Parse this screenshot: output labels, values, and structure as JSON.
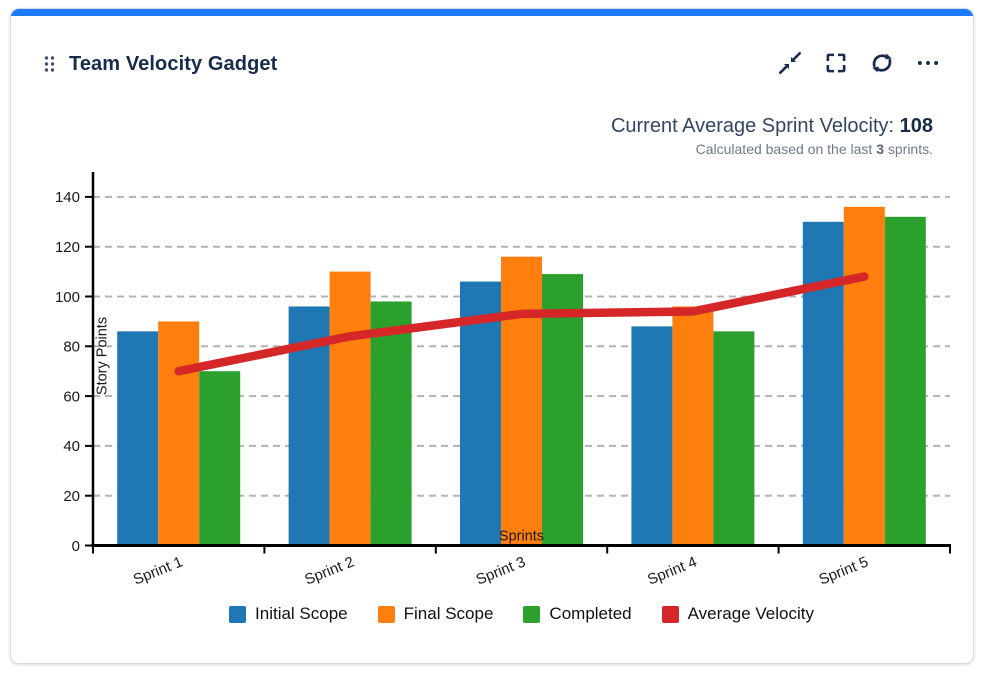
{
  "card": {
    "title": "Team Velocity Gadget",
    "accent_color": "#1d7afc",
    "icon_color": "#172b4d"
  },
  "toolbar": {
    "icons": [
      "collapse",
      "fullscreen",
      "refresh",
      "more"
    ]
  },
  "summary": {
    "label": "Current Average Sprint Velocity: ",
    "value": "108",
    "subtext_prefix": "Calculated based on the last ",
    "subtext_bold": "3",
    "subtext_suffix": " sprints."
  },
  "chart_data": {
    "type": "bar",
    "title": "",
    "categories": [
      "Sprint 1",
      "Sprint 2",
      "Sprint 3",
      "Sprint 4",
      "Sprint 5"
    ],
    "series": [
      {
        "name": "Initial Scope",
        "type": "bar",
        "color": "#1f77b4",
        "values": [
          86,
          96,
          106,
          88,
          130
        ]
      },
      {
        "name": "Final Scope",
        "type": "bar",
        "color": "#ff7f0e",
        "values": [
          90,
          110,
          116,
          96,
          136
        ]
      },
      {
        "name": "Completed",
        "type": "bar",
        "color": "#2ca02c",
        "values": [
          70,
          98,
          109,
          86,
          132
        ]
      },
      {
        "name": "Average Velocity",
        "type": "line",
        "color": "#d62728",
        "values": [
          70,
          84,
          93,
          94,
          108
        ]
      }
    ],
    "xlabel": "Sprints",
    "ylabel": "Story Points",
    "ylim": [
      0,
      150
    ],
    "yticks": [
      0,
      20,
      40,
      60,
      80,
      100,
      120,
      140
    ],
    "grid": "horizontal-dashed",
    "legend_position": "bottom"
  }
}
